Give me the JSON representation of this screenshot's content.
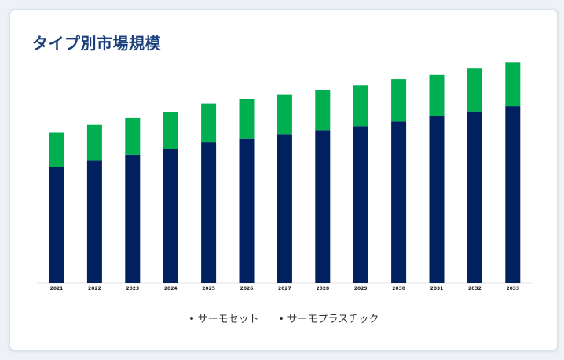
{
  "chart_data": {
    "type": "bar",
    "stacked": true,
    "title": "タイプ別市場規模",
    "xlabel": "",
    "ylabel": "",
    "ylim": [
      0,
      100
    ],
    "grid": false,
    "legend_position": "bottom-center",
    "categories": [
      "2021",
      "2022",
      "2023",
      "2024",
      "2025",
      "2026",
      "2027",
      "2028",
      "2029",
      "2030",
      "2031",
      "2032",
      "2033"
    ],
    "series": [
      {
        "name": "サーモセット",
        "color": "#00205f",
        "values": [
          47.0,
          49.4,
          51.8,
          54.1,
          56.8,
          58.2,
          59.9,
          61.5,
          63.4,
          65.3,
          67.3,
          69.3,
          71.4
        ]
      },
      {
        "name": "サーモプラスチック",
        "color": "#00b050",
        "values": [
          13.8,
          14.5,
          14.9,
          14.9,
          15.7,
          16.1,
          16.1,
          16.5,
          16.5,
          16.9,
          16.9,
          17.3,
          17.7
        ]
      }
    ]
  }
}
